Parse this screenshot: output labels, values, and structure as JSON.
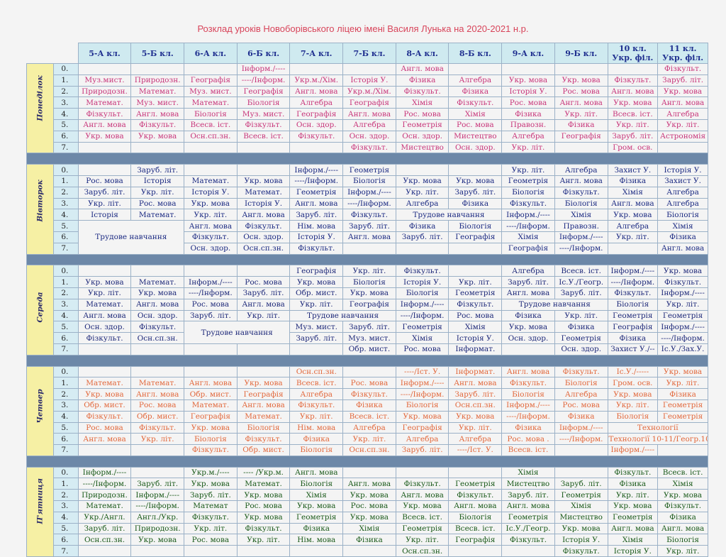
{
  "title": "Розклад уроків Новоборівського ліцею імені Василя Лунька на 2020-2021 н.р.",
  "classes": [
    "5-А кл.",
    "5-Б кл.",
    "6-А кл.",
    "6-Б кл.",
    "7-А кл.",
    "7-Б кл.",
    "8-А кл.",
    "8-Б кл.",
    "9-А кл.",
    "9-Б кл.",
    "10 кл. Укр. філ.",
    "11 кл. Укр. філ."
  ],
  "days": [
    {
      "name": "Понеділок",
      "color": "c-pink",
      "rows": [
        {
          "n": "0.",
          "cells": [
            "",
            "",
            "",
            "Інформ./----",
            "",
            "",
            "Англ. мова",
            "",
            "",
            "",
            "",
            "Фізкульт."
          ]
        },
        {
          "n": "1.",
          "cells": [
            "Муз.мист.",
            "Природозн.",
            "Географія",
            "----/Інформ.",
            "Укр.м./Хім.",
            "Історія У.",
            "Фізика",
            "Алгебра",
            "Укр. мова",
            "Укр. мова",
            "Фізкульт.",
            "Заруб. літ."
          ]
        },
        {
          "n": "2.",
          "cells": [
            "Природозн.",
            "Математ.",
            "Муз. мист.",
            "Географія",
            "Англ. мова",
            "Укр.м./Хім.",
            "Фізкульт.",
            "Фізика",
            "Історія У.",
            "Рос. мова",
            "Англ. мова",
            "Укр. мова"
          ]
        },
        {
          "n": "3.",
          "cells": [
            "Математ.",
            "Муз. мист.",
            "Математ.",
            "Біологія",
            "Алгебра",
            "Географія",
            "Хімія",
            "Фізкульт.",
            "Рос. мова",
            "Англ. мова",
            "Укр. мова",
            "Англ. мова"
          ]
        },
        {
          "n": "4.",
          "cells": [
            "Фізкульт.",
            "Англ. мова",
            "Біологія",
            "Муз. мист.",
            "Географія",
            "Англ. мова",
            "Рос. мова",
            "Хімія",
            "Фізика",
            "Укр. літ.",
            "Всесв. іст.",
            "Алгебра"
          ]
        },
        {
          "n": "5.",
          "cells": [
            "Англ. мова",
            "Фізкульт.",
            "Всесв. іст.",
            "Фізкульт.",
            "Осн. здор.",
            "Алгебра",
            "Геометрія",
            "Рос. мова",
            "Правозн.",
            "Фізика",
            "Укр. літ.",
            "Укр. літ."
          ]
        },
        {
          "n": "6.",
          "cells": [
            "Укр. мова",
            "Укр. мова",
            "Осн.сп.зн.",
            "Всесв. іст.",
            "Фізкульт.",
            "Осн. здор.",
            "Осн. здор.",
            "Мистецтво",
            "Алгебра",
            "Географія",
            "Заруб. літ.",
            "Астрономія"
          ]
        },
        {
          "n": "7.",
          "cells": [
            "",
            "",
            "",
            "",
            "",
            "Фізкульт.",
            "Мистецтво",
            "Осн. здор.",
            "Укр. літ.",
            "",
            "Гром. осв.",
            ""
          ]
        }
      ]
    },
    {
      "name": "Вівторок",
      "color": "c-blue",
      "rows": [
        {
          "n": "0.",
          "cells": [
            "",
            "Заруб. літ.",
            "",
            "",
            "Інформ./----",
            "Геометрія",
            "",
            "",
            "Укр. літ.",
            "Алгебра",
            "Захист У.",
            "Історія У."
          ]
        },
        {
          "n": "1.",
          "cells": [
            "Рос. мова",
            "Історія",
            "Математ.",
            "Укр. мова",
            "----/Інформ.",
            "Біологія",
            "Укр. мова",
            "Укр. мова",
            "Геометрія",
            "Англ. мова",
            "Фізика",
            "Захист У."
          ]
        },
        {
          "n": "2.",
          "cells": [
            "Заруб. літ.",
            "Укр. літ.",
            "Історія У.",
            "Математ.",
            "Геометрія",
            "Інформ./----",
            "Укр. літ.",
            "Заруб. літ.",
            "Біологія",
            "Фізкульт.",
            "Хімія",
            "Алгебра"
          ]
        },
        {
          "n": "3.",
          "cells": [
            "Укр. літ.",
            "Рос. мова",
            "Укр. мова",
            "Історія У.",
            "Англ. мова",
            "----/Інформ.",
            "Алгебра",
            "Фізика",
            "Фізкульт.",
            "Біологія",
            "Англ. мова",
            "Алгебра"
          ]
        },
        {
          "n": "4.",
          "cells": [
            "Історія",
            "Математ.",
            "Укр. літ.",
            "Англ. мова",
            "Заруб. літ.",
            "Фізкульт.",
            "Трудове навчання",
            "",
            "Інформ./----",
            "Хімія",
            "Укр. мова",
            "Біологія"
          ]
        },
        {
          "n": "5.",
          "cells": [
            "Трудове навчання",
            "",
            "Англ. мова",
            "Фізкульт.",
            "Нім. мова",
            "Заруб. літ.",
            "Фізика",
            "Біологія",
            "----/Інформ.",
            "Правозн.",
            "Алгебра",
            "Хімія"
          ]
        },
        {
          "n": "6.",
          "cells": [
            "",
            "",
            "Фізкульт.",
            "Осн. здор.",
            "Історія У.",
            "Англ. мова",
            "Заруб. літ.",
            "Географія",
            "Хімія",
            "Інформ./----",
            "Укр. літ.",
            "Фізика"
          ]
        },
        {
          "n": "7.",
          "cells": [
            "",
            "",
            "Осн. здор.",
            "Осн.сп.зн.",
            "Фізкульт.",
            "",
            "",
            "",
            "Географія",
            "----/Інформ.",
            "",
            "Англ. мова"
          ]
        }
      ]
    },
    {
      "name": "Середа",
      "color": "c-navy",
      "rows": [
        {
          "n": "0.",
          "cells": [
            "",
            "",
            "",
            "",
            "Географія",
            "Укр. літ.",
            "Фізкульт.",
            "",
            "Алгебра",
            "Всесв. іст.",
            "Інформ./----",
            "Укр. мова"
          ]
        },
        {
          "n": "1.",
          "cells": [
            "Укр. мова",
            "Математ.",
            "Інформ./----",
            "Рос. мова",
            "Укр. мова",
            "Біологія",
            "Історія У.",
            "Укр. літ.",
            "Заруб. літ.",
            "Іс.У./Геогр.",
            "----/Інформ.",
            "Фізкульт."
          ]
        },
        {
          "n": "2.",
          "cells": [
            "Укр. літ.",
            "Укр. мова",
            "----/Інформ.",
            "Заруб. літ.",
            "Обр. мист.",
            "Укр. мова",
            "Біологія",
            "Геометрія",
            "Англ. мова",
            "Заруб. літ.",
            "Фізкульт.",
            "Інформ./----"
          ]
        },
        {
          "n": "3.",
          "cells": [
            "Математ.",
            "Англ. мова",
            "Рос. мова",
            "Англ. мова",
            "Укр. літ.",
            "Географія",
            "Інформ./----",
            "Фізкульт.",
            "Трудове навчання",
            "",
            "Біологія",
            "Укр. літ."
          ]
        },
        {
          "n": "4.",
          "cells": [
            "Англ. мова",
            "Осн. здор.",
            "Заруб. літ.",
            "Укр. літ.",
            "Трудове навчання",
            "",
            "----/Інформ.",
            "Рос. мова",
            "Фізика",
            "Укр. літ.",
            "Геометрія",
            "Геометрія"
          ]
        },
        {
          "n": "5.",
          "cells": [
            "Осн. здор.",
            "Фізкульт.",
            "Трудове навчання",
            "",
            "Муз. мист.",
            "Заруб. літ.",
            "Геометрія",
            "Хімія",
            "Укр. мова",
            "Фізика",
            "Географія",
            "Інформ./----"
          ]
        },
        {
          "n": "6.",
          "cells": [
            "Фізкульт.",
            "Осн.сп.зн.",
            "",
            "",
            "Заруб. літ.",
            "Муз. мист.",
            "Хімія",
            "Історія У.",
            "Осн. здор.",
            "Геометрія",
            "Фізика",
            "----/Інформ."
          ]
        },
        {
          "n": "7.",
          "cells": [
            "",
            "",
            "",
            "",
            "",
            "Обр. мист.",
            "Рос. мова",
            "Інформат.",
            "",
            "Осн. здор.",
            "Захист У./--",
            "Іс.У./Зах.У."
          ]
        }
      ]
    },
    {
      "name": "Четвер",
      "color": "c-orange",
      "rows": [
        {
          "n": "0.",
          "cells": [
            "",
            "",
            "",
            "",
            "Осн.сп.зн.",
            "",
            "----/Іст. У.",
            "Інформат.",
            "Англ. мова",
            "Фізкульт.",
            "Іс.У./-----",
            "Укр. мова"
          ]
        },
        {
          "n": "1.",
          "cells": [
            "Математ.",
            "Математ.",
            "Англ. мова",
            "Укр. мова",
            "Всесв. іст.",
            "Рос. мова",
            "Інформ./----",
            "Англ. мова",
            "Фізкульт.",
            "Біологія",
            "Гром. осв.",
            "Укр. літ."
          ]
        },
        {
          "n": "2.",
          "cells": [
            "Укр. мова",
            "Англ. мова",
            "Обр. мист.",
            "Географія",
            "Алгебра",
            "Фізкульт.",
            "----/Інформ.",
            "Заруб. літ.",
            "Біологія",
            "Алгебра",
            "Укр. мова",
            "Фізика"
          ]
        },
        {
          "n": "3.",
          "cells": [
            "Обр. мист.",
            "Рос. мова",
            "Математ.",
            "Англ. мова",
            "Фізкульт.",
            "Фізика",
            "Біологія",
            "Осн.сп.зн.",
            "Інформ./----",
            "Рос. мова",
            "Укр. літ.",
            "Геометрія"
          ]
        },
        {
          "n": "4.",
          "cells": [
            "Фізкульт.",
            "Обр. мист.",
            "Географія",
            "Математ.",
            "Укр. літ.",
            "Всесв. іст.",
            "Укр. мова",
            "Укр. мова",
            "----/Інформ.",
            "Фізика",
            "Біологія",
            "Геометрія"
          ]
        },
        {
          "n": "5.",
          "cells": [
            "Рос. мова",
            "Фізкульт.",
            "Укр. мова",
            "Біологія",
            "Нім. мова",
            "Алгебра",
            "Географія",
            "Укр. літ.",
            "Фізика",
            "Інформ./----",
            "Технології",
            ""
          ]
        },
        {
          "n": "6.",
          "cells": [
            "Англ. мова",
            "Укр. літ.",
            "Біологія",
            "Фізкульт.",
            "Фізика",
            "Укр. літ.",
            "Алгебра",
            "Алгебра",
            "Рос. мова .",
            "----/Інформ.",
            "Технології 10-11/Геогр.10",
            ""
          ]
        },
        {
          "n": "7.",
          "cells": [
            "",
            "",
            "Фізкульт.",
            "Обр. мист.",
            "Біологія",
            "Осн.сп.зн.",
            "Заруб. літ.",
            "----/Іст. У.",
            "Всесв. іст.",
            "",
            "Інформ./----",
            ""
          ]
        }
      ]
    },
    {
      "name": "П'ятниця",
      "color": "c-green",
      "rows": [
        {
          "n": "0.",
          "cells": [
            "Інформ./----",
            "",
            "Укр.м./----",
            "---- /Укр.м.",
            "Англ. мова",
            "",
            "",
            "",
            "Хімія",
            "",
            "Фізкульт.",
            "Всесв. іст."
          ]
        },
        {
          "n": "1.",
          "cells": [
            "----/Інформ.",
            "Заруб. літ.",
            "Укр. мова",
            "Математ.",
            "Біологія",
            "Англ. мова",
            "Фізкульт.",
            "Геометрія",
            "Мистецтво",
            "Заруб. літ.",
            "Фізика",
            "Хімія"
          ]
        },
        {
          "n": "2.",
          "cells": [
            "Природозн.",
            "Інформ./----",
            "Заруб. літ.",
            "Укр. мова",
            "Хімія",
            "Укр. мова",
            "Англ. мова",
            "Фізкульт.",
            "Заруб. літ.",
            "Геометрія",
            "Укр. літ.",
            "Укр. мова"
          ]
        },
        {
          "n": "3.",
          "cells": [
            "Математ.",
            "----/Інформ.",
            "Математ",
            "Рос. мова",
            "Укр. мова",
            "Рос. мова",
            "Укр. мова",
            "Англ. мова",
            "Англ. мова",
            "Хімія",
            "Укр. мова",
            "Фізкульт."
          ]
        },
        {
          "n": "4.",
          "cells": [
            "Укр./Англ.",
            "Англ./Укр.",
            "Фізкульт.",
            "Укр. мова",
            "Геометрія",
            "Укр. мова",
            "Всесв. іст.",
            "Біологія",
            "Геометрія",
            "Мистецтво",
            "Геометрія",
            "Фізика"
          ]
        },
        {
          "n": "5.",
          "cells": [
            "Заруб. літ.",
            "Природозн.",
            "Укр. літ.",
            "Фізкульт.",
            "Фізика",
            "Хімія",
            "Геометрія",
            "Всесв. іст.",
            "Іс.У./Геогр.",
            "Укр. мова",
            "Англ. мова",
            "Англ. мова"
          ]
        },
        {
          "n": "6.",
          "cells": [
            "Осн.сп.зн.",
            "Укр. мова",
            "Рос. мова",
            "Укр. літ.",
            "Нім. мова",
            "Фізика",
            "Укр. літ.",
            "Географія",
            "Фізкульт.",
            "Історія У.",
            "Хімія",
            "Біологія"
          ]
        },
        {
          "n": "7.",
          "cells": [
            "",
            "",
            "",
            "",
            "",
            "",
            "Осн.сп.зн.",
            "",
            "",
            "Фізкульт.",
            "Історія У.",
            "Укр. літ."
          ]
        }
      ]
    }
  ]
}
